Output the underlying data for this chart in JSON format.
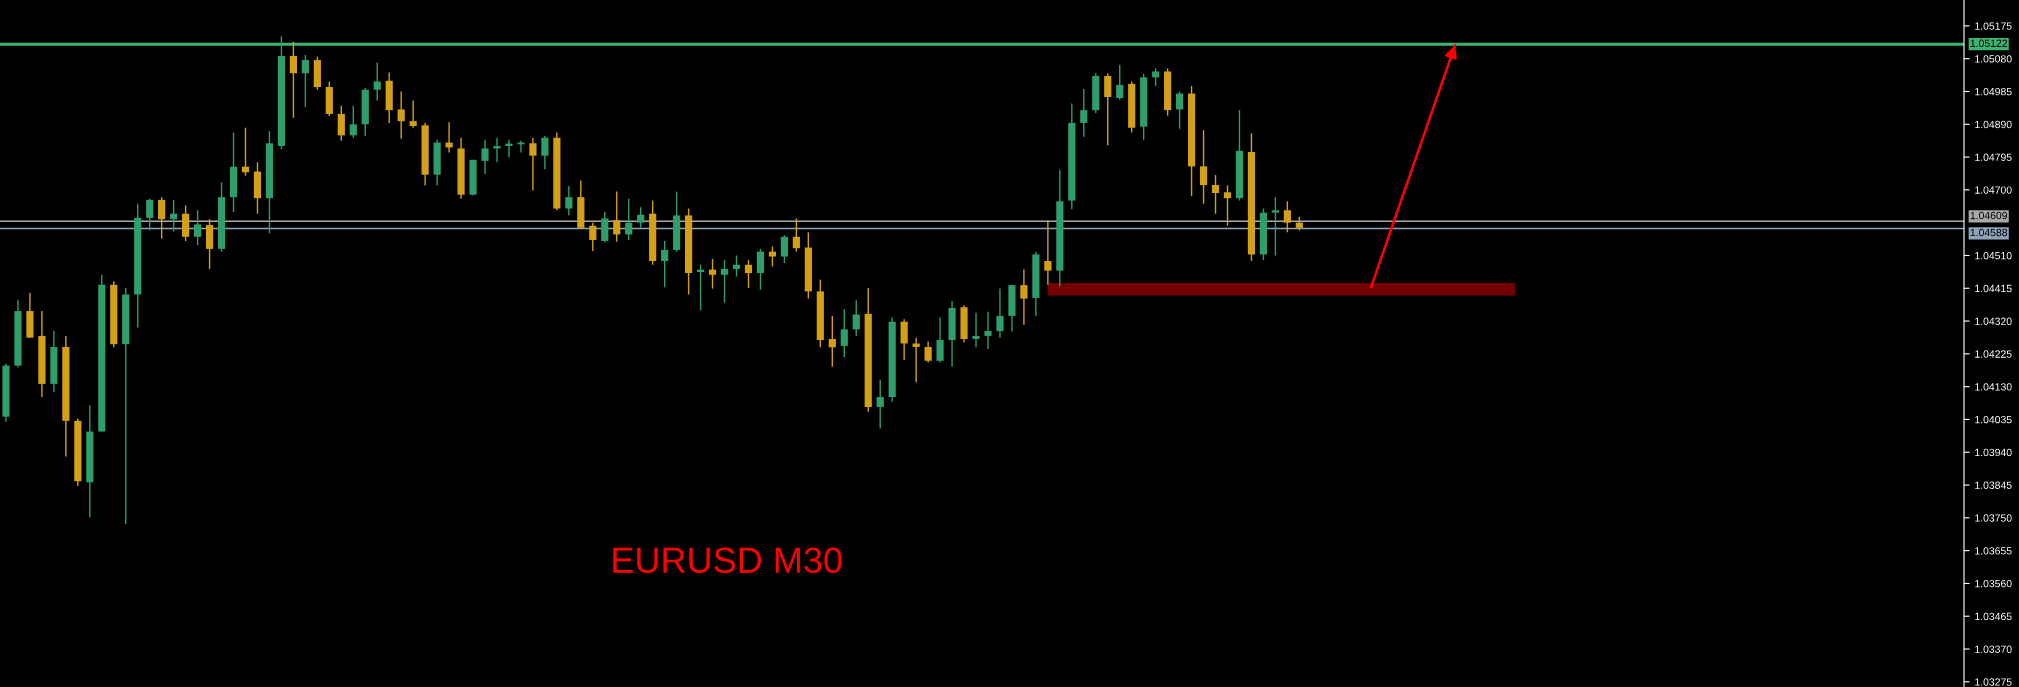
{
  "chart_data": {
    "type": "candlestick",
    "title": "EURUSD M30",
    "tick_labels": "y",
    "ylim": [
      1.0326,
      1.0525
    ],
    "yticks": [
      {
        "value": 1.03275,
        "label": "1.03275"
      },
      {
        "value": 1.0337,
        "label": "1.03370"
      },
      {
        "value": 1.03465,
        "label": "1.03465"
      },
      {
        "value": 1.0356,
        "label": "1.03560"
      },
      {
        "value": 1.03655,
        "label": "1.03655"
      },
      {
        "value": 1.0375,
        "label": "1.03750"
      },
      {
        "value": 1.03845,
        "label": "1.03845"
      },
      {
        "value": 1.0394,
        "label": "1.03940"
      },
      {
        "value": 1.04035,
        "label": "1.04035"
      },
      {
        "value": 1.0413,
        "label": "1.04130"
      },
      {
        "value": 1.04225,
        "label": "1.04225"
      },
      {
        "value": 1.0432,
        "label": "1.04320"
      },
      {
        "value": 1.04415,
        "label": "1.04415"
      },
      {
        "value": 1.0451,
        "label": "1.04510"
      },
      {
        "value": 1.047,
        "label": "1.04700"
      },
      {
        "value": 1.04795,
        "label": "1.04795"
      },
      {
        "value": 1.0489,
        "label": "1.04890"
      },
      {
        "value": 1.04985,
        "label": "1.04985"
      },
      {
        "value": 1.0508,
        "label": "1.05080"
      },
      {
        "value": 1.05175,
        "label": "1.05175"
      }
    ],
    "ref_lines": [
      {
        "axis": "y",
        "value": 1.05122,
        "label": "1.05122",
        "color": "#3cb371"
      },
      {
        "axis": "y",
        "value": 1.04609,
        "label": "1.04609",
        "color": "#a9a9a9"
      },
      {
        "axis": "y",
        "value": 1.04588,
        "label": "1.04588",
        "color": "#8fa3b8"
      }
    ],
    "categories": [
      null,
      null,
      null,
      null,
      null,
      null,
      null,
      null,
      null,
      null,
      null,
      null,
      null,
      null,
      null,
      null,
      null,
      null,
      null,
      null,
      null,
      null,
      null,
      null,
      null,
      null,
      null,
      null,
      null,
      null,
      null,
      null,
      null,
      null,
      null,
      null,
      null,
      null,
      null,
      null,
      null,
      null,
      null,
      null,
      null,
      null,
      null,
      null,
      null,
      null,
      null,
      null,
      null,
      null,
      null,
      null,
      null,
      null,
      null,
      null,
      null,
      null,
      null,
      null,
      null,
      null,
      null,
      null,
      null,
      null,
      null,
      null,
      null,
      null,
      null,
      null,
      null,
      null,
      null,
      null,
      null,
      null,
      null,
      null,
      null,
      null,
      null,
      null,
      null,
      null,
      null,
      null,
      null,
      null,
      null,
      null,
      null,
      null,
      null,
      null,
      null,
      null,
      null,
      null,
      null,
      null,
      null,
      null,
      null,
      null,
      null,
      null,
      null,
      null,
      null,
      null,
      null,
      null,
      null,
      null,
      null,
      null,
      null,
      null,
      null,
      null,
      null,
      null,
      null,
      null,
      null,
      null,
      null,
      null,
      null,
      null,
      null,
      null,
      null,
      null,
      null,
      null,
      null,
      null,
      null,
      null,
      null,
      null,
      null,
      null,
      null,
      null,
      null,
      null,
      null,
      null,
      null,
      null,
      null,
      null,
      null,
      null,
      null,
      null
    ],
    "ohlc": [
      [
        1.04043,
        1.04196,
        1.04028,
        1.04191
      ],
      [
        1.04191,
        1.04382,
        1.04186,
        1.04349
      ],
      [
        1.04349,
        1.04402,
        1.04272,
        1.04272
      ],
      [
        1.04277,
        1.04349,
        1.041,
        1.04138
      ],
      [
        1.04138,
        1.04291,
        1.04114,
        1.04245
      ],
      [
        1.04245,
        1.04277,
        1.03928,
        1.04031
      ],
      [
        1.04031,
        1.04038,
        1.03842,
        1.03856
      ],
      [
        1.03853,
        1.04076,
        1.03751,
        1.04
      ],
      [
        1.04,
        1.04454,
        1.04,
        1.04425
      ],
      [
        1.04425,
        1.04435,
        1.04244,
        1.04253
      ],
      [
        1.04253,
        1.04416,
        1.03732,
        1.04397
      ],
      [
        1.04397,
        1.0466,
        1.04301,
        1.04619
      ],
      [
        1.04619,
        1.04674,
        1.04583,
        1.04671
      ],
      [
        1.04671,
        1.04679,
        1.04559,
        1.04615
      ],
      [
        1.04615,
        1.04671,
        1.04579,
        1.04631
      ],
      [
        1.04631,
        1.04655,
        1.04552,
        1.04564
      ],
      [
        1.04564,
        1.04641,
        1.0454,
        1.046
      ],
      [
        1.04598,
        1.04615,
        1.04471,
        1.04529
      ],
      [
        1.04529,
        1.04722,
        1.04521,
        1.04679
      ],
      [
        1.04679,
        1.04866,
        1.04636,
        1.04767
      ],
      [
        1.04767,
        1.0488,
        1.04741,
        1.04751
      ],
      [
        1.04753,
        1.0478,
        1.04631,
        1.04676
      ],
      [
        1.04676,
        1.0487,
        1.04574,
        1.04835
      ],
      [
        1.04827,
        1.05145,
        1.04818,
        1.05088
      ],
      [
        1.05088,
        1.05129,
        1.04909,
        1.05038
      ],
      [
        1.05038,
        1.05091,
        1.0494,
        1.05076
      ],
      [
        1.05076,
        1.05086,
        1.0499,
        1.04998
      ],
      [
        1.04998,
        1.05014,
        1.04914,
        1.0492
      ],
      [
        1.0492,
        1.04944,
        1.04842,
        1.04858
      ],
      [
        1.04858,
        1.04944,
        1.04851,
        1.0489
      ],
      [
        1.0489,
        1.04995,
        1.04856,
        1.0499
      ],
      [
        1.0499,
        1.05069,
        1.04959,
        1.05014
      ],
      [
        1.05016,
        1.0504,
        1.04894,
        1.04931
      ],
      [
        1.04933,
        1.04985,
        1.04848,
        1.04899
      ],
      [
        1.04899,
        1.04959,
        1.0488,
        1.04885
      ],
      [
        1.04887,
        1.04894,
        1.04713,
        1.04744
      ],
      [
        1.04744,
        1.04845,
        1.04713,
        1.04837
      ],
      [
        1.04837,
        1.04896,
        1.04808,
        1.04823
      ],
      [
        1.0482,
        1.04851,
        1.04674,
        1.04686
      ],
      [
        1.04686,
        1.04787,
        1.04684,
        1.04787
      ],
      [
        1.04784,
        1.04845,
        1.04746,
        1.0482
      ],
      [
        1.0482,
        1.04851,
        1.0478,
        1.04827
      ],
      [
        1.04827,
        1.04845,
        1.04794,
        1.04834
      ],
      [
        1.04832,
        1.04842,
        1.04808,
        1.04837
      ],
      [
        1.04835,
        1.04851,
        1.04698,
        1.04799
      ],
      [
        1.04799,
        1.04856,
        1.0476,
        1.04851
      ],
      [
        1.04851,
        1.04866,
        1.04641,
        1.04646
      ],
      [
        1.04646,
        1.04711,
        1.04626,
        1.04679
      ],
      [
        1.04679,
        1.04727,
        1.04588,
        1.0459
      ],
      [
        1.04596,
        1.04605,
        1.04523,
        1.04555
      ],
      [
        1.04552,
        1.04636,
        1.04548,
        1.04617
      ],
      [
        1.04612,
        1.04695,
        1.0455,
        1.04571
      ],
      [
        1.04571,
        1.04674,
        1.04555,
        1.04605
      ],
      [
        1.04605,
        1.0465,
        1.0459,
        1.04628
      ],
      [
        1.04631,
        1.04669,
        1.04483,
        1.04494
      ],
      [
        1.04494,
        1.04552,
        1.04418,
        1.04526
      ],
      [
        1.04526,
        1.04695,
        1.04521,
        1.04626
      ],
      [
        1.04626,
        1.04646,
        1.04397,
        1.04459
      ],
      [
        1.04462,
        1.04483,
        1.04351,
        1.04469
      ],
      [
        1.04469,
        1.045,
        1.04414,
        1.04454
      ],
      [
        1.04454,
        1.04497,
        1.04373,
        1.04471
      ],
      [
        1.04471,
        1.0451,
        1.04449,
        1.04483
      ],
      [
        1.04483,
        1.04497,
        1.04416,
        1.04459
      ],
      [
        1.04459,
        1.04529,
        1.04411,
        1.04521
      ],
      [
        1.04521,
        1.04536,
        1.04478,
        1.04507
      ],
      [
        1.04507,
        1.04569,
        1.04488,
        1.04564
      ],
      [
        1.04564,
        1.04617,
        1.04521,
        1.04531
      ],
      [
        1.04533,
        1.04577,
        1.04385,
        1.04406
      ],
      [
        1.04406,
        1.0444,
        1.04244,
        1.04265
      ],
      [
        1.04268,
        1.04335,
        1.04188,
        1.04244
      ],
      [
        1.04248,
        1.04354,
        1.04215,
        1.04296
      ],
      [
        1.04296,
        1.0438,
        1.04277,
        1.04339
      ],
      [
        1.04341,
        1.04416,
        1.04057,
        1.04071
      ],
      [
        1.04071,
        1.0415,
        1.04009,
        1.041
      ],
      [
        1.041,
        1.0433,
        1.04086,
        1.04318
      ],
      [
        1.04318,
        1.04325,
        1.04207,
        1.04255
      ],
      [
        1.04255,
        1.04272,
        1.04143,
        1.04245
      ],
      [
        1.04245,
        1.04261,
        1.042,
        1.04205
      ],
      [
        1.04205,
        1.0433,
        1.042,
        1.04265
      ],
      [
        1.04265,
        1.04378,
        1.04188,
        1.04358
      ],
      [
        1.0436,
        1.04366,
        1.04258,
        1.04268
      ],
      [
        1.04268,
        1.04344,
        1.04244,
        1.04277
      ],
      [
        1.04277,
        1.04347,
        1.04239,
        1.04291
      ],
      [
        1.04291,
        1.04414,
        1.04272,
        1.04335
      ],
      [
        1.04335,
        1.04425,
        1.0429,
        1.04424
      ],
      [
        1.04424,
        1.04469,
        1.04309,
        1.04385
      ],
      [
        1.04387,
        1.04521,
        1.04335,
        1.04513
      ],
      [
        1.04494,
        1.04612,
        1.04425,
        1.04466
      ],
      [
        1.04466,
        1.04758,
        1.04421,
        1.04667
      ],
      [
        1.04669,
        1.0495,
        1.04644,
        1.04894
      ],
      [
        1.04894,
        1.04992,
        1.04854,
        1.04931
      ],
      [
        1.04931,
        1.05038,
        1.04923,
        1.0503
      ],
      [
        1.0503,
        1.05038,
        1.04829,
        1.04969
      ],
      [
        1.04966,
        1.05062,
        1.04961,
        1.05004
      ],
      [
        1.05007,
        1.05014,
        1.04866,
        1.0488
      ],
      [
        1.04883,
        1.05036,
        1.04845,
        1.05026
      ],
      [
        1.05026,
        1.05052,
        1.05001,
        1.05043
      ],
      [
        1.05043,
        1.05052,
        1.04915,
        1.04931
      ],
      [
        1.04933,
        1.04985,
        1.04877,
        1.04979
      ],
      [
        1.04979,
        1.05001,
        1.04682,
        1.04768
      ],
      [
        1.04768,
        1.04873,
        1.0466,
        1.04714
      ],
      [
        1.04714,
        1.04743,
        1.04631,
        1.04691
      ],
      [
        1.04693,
        1.04713,
        1.04596,
        1.04676
      ],
      [
        1.04676,
        1.04931,
        1.04669,
        1.04813
      ],
      [
        1.0481,
        1.04864,
        1.04494,
        1.04513
      ],
      [
        1.04513,
        1.04646,
        1.04497,
        1.04634
      ],
      [
        1.04634,
        1.04679,
        1.0451,
        1.04641
      ],
      [
        1.04641,
        1.04667,
        1.04577,
        1.04605
      ],
      [
        1.04605,
        1.04622,
        1.04583,
        1.0459
      ],
      null,
      null,
      null,
      null,
      null,
      null,
      null,
      null,
      null,
      null,
      null,
      null,
      null,
      null,
      null,
      null,
      null,
      null,
      null,
      null,
      null,
      null,
      null,
      null,
      null,
      null,
      null,
      null,
      null,
      null,
      null,
      null,
      null,
      null,
      null,
      null,
      null,
      null,
      null,
      null,
      null,
      null,
      null,
      null,
      null,
      null,
      null,
      null,
      null,
      null,
      null,
      null,
      null,
      null,
      null
    ],
    "series": [
      {
        "type": "line",
        "color": "#720000",
        "values": [
          null,
          null,
          null,
          null,
          null,
          null,
          null,
          null,
          null,
          null,
          null,
          null,
          null,
          null,
          null,
          null,
          null,
          null,
          null,
          null,
          null,
          null,
          null,
          null,
          null,
          null,
          null,
          null,
          null,
          null,
          null,
          null,
          null,
          null,
          null,
          null,
          null,
          null,
          null,
          null,
          null,
          null,
          null,
          null,
          null,
          null,
          null,
          null,
          null,
          null,
          null,
          null,
          null,
          null,
          null,
          null,
          null,
          null,
          null,
          null,
          null,
          null,
          null,
          null,
          null,
          null,
          null,
          null,
          null,
          null,
          null,
          null,
          null,
          null,
          null,
          null,
          null,
          null,
          null,
          null,
          null,
          null,
          null,
          null,
          null,
          null,
          null,
          1.04412,
          1.04412,
          1.04412,
          1.04412,
          1.04412,
          1.04412,
          1.04412,
          1.04412,
          1.04412,
          1.04412,
          1.04412,
          1.04412,
          1.04412,
          1.04412,
          1.04412,
          1.04412,
          1.04412,
          1.04412,
          1.04412,
          1.04412,
          1.04412,
          1.04412,
          1.04412,
          1.04412,
          1.04412,
          1.04412,
          1.04412,
          1.04412,
          1.04412,
          1.04412,
          1.04412,
          1.04412,
          1.04412,
          1.04412,
          1.04412,
          1.04412,
          1.04412,
          1.04412,
          1.04412,
          1.04412,
          null,
          null,
          null,
          null,
          null,
          null,
          null,
          null,
          null,
          null,
          null,
          null,
          null,
          null,
          null,
          null,
          null,
          null,
          null,
          null,
          null,
          null,
          null,
          null,
          null,
          null,
          null,
          null,
          null,
          null,
          null,
          null,
          null,
          null,
          null,
          null,
          null
        ]
      },
      {
        "type": "line",
        "color": "#ff0000",
        "values": [
          null,
          null,
          null,
          null,
          null,
          null,
          null,
          null,
          null,
          null,
          null,
          null,
          null,
          null,
          null,
          null,
          null,
          null,
          null,
          null,
          null,
          null,
          null,
          null,
          null,
          null,
          null,
          null,
          null,
          null,
          null,
          null,
          null,
          null,
          null,
          null,
          null,
          null,
          null,
          null,
          null,
          null,
          null,
          null,
          null,
          null,
          null,
          null,
          null,
          null,
          null,
          null,
          null,
          null,
          null,
          null,
          null,
          null,
          null,
          null,
          null,
          null,
          null,
          null,
          null,
          null,
          null,
          null,
          null,
          null,
          null,
          null,
          null,
          null,
          null,
          null,
          null,
          null,
          null,
          null,
          null,
          null,
          null,
          null,
          null,
          null,
          null,
          null,
          null,
          null,
          null,
          null,
          null,
          null,
          null,
          null,
          null,
          null,
          null,
          null,
          null,
          null,
          null,
          null,
          null,
          null,
          null,
          null,
          null,
          null,
          null,
          null,
          null,
          null,
          1.04419,
          null,
          null,
          null,
          null,
          null,
          null,
          1.05119,
          null,
          null,
          null,
          null,
          null,
          null,
          null,
          null,
          null,
          null,
          null,
          null,
          null,
          null,
          null,
          null,
          null,
          null,
          null,
          null,
          null,
          null,
          null,
          null,
          null,
          null,
          null,
          null,
          null,
          null,
          null,
          null,
          null,
          null,
          null,
          null,
          null,
          null,
          null,
          null,
          null,
          null
        ]
      }
    ]
  }
}
